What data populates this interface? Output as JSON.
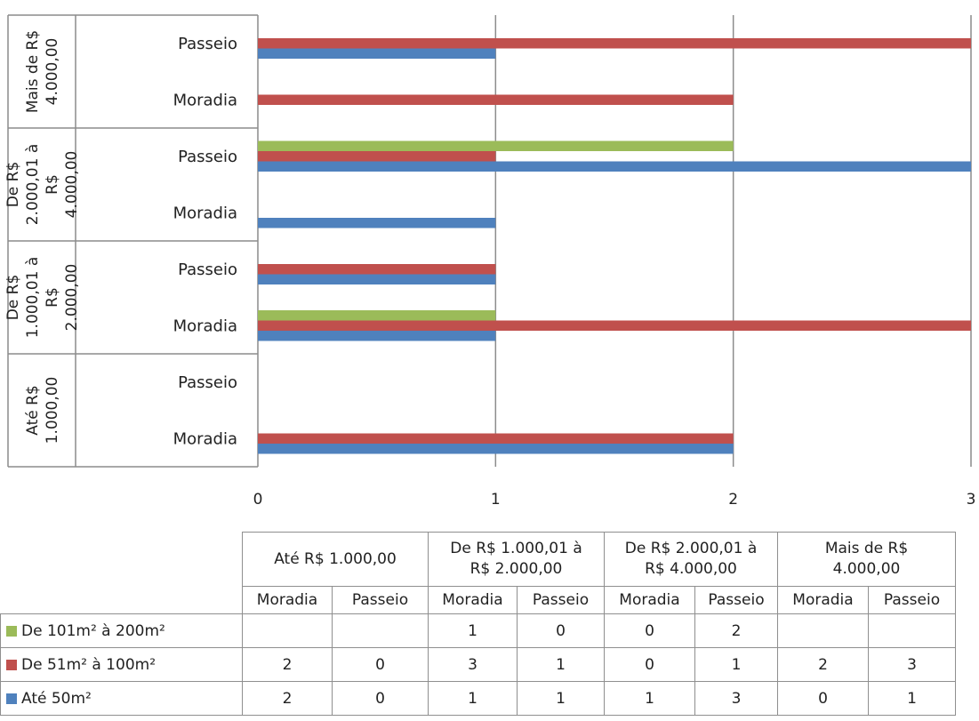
{
  "chart_data": {
    "type": "bar",
    "orientation": "horizontal",
    "groups": [
      "Até R$ 1.000,00",
      "De R$ 1.000,01 à R$ 2.000,00",
      "De R$ 2.000,01 à R$ 4.000,00",
      "Mais de R$ 4.000,00"
    ],
    "group_axis_labels": [
      [
        "Até R$",
        "1.000,00"
      ],
      [
        "De R$",
        "1.000,01 à",
        "R$",
        "2.000,00"
      ],
      [
        "De R$",
        "2.000,01 à",
        "R$",
        "4.000,00"
      ],
      [
        "Mais de R$",
        "4.000,00"
      ]
    ],
    "subcategories": [
      "Moradia",
      "Passeio"
    ],
    "x_ticks": [
      "0",
      "1",
      "2",
      "3"
    ],
    "xlim": [
      0,
      3
    ],
    "grid": true,
    "legend": "data-table",
    "series": [
      {
        "name": "De 101m² à 200m²",
        "color": "#9bbb59",
        "values": [
          null,
          null,
          1,
          0,
          0,
          2,
          null,
          null
        ],
        "labels": [
          "",
          "",
          "1",
          "0",
          "0",
          "2",
          "",
          ""
        ]
      },
      {
        "name": "De 51m² à 100m²",
        "color": "#c0504d",
        "values": [
          2,
          0,
          3,
          1,
          0,
          1,
          2,
          3
        ],
        "labels": [
          "2",
          "0",
          "3",
          "1",
          "0",
          "1",
          "2",
          "3"
        ]
      },
      {
        "name": "Até 50m²",
        "color": "#4f81bd",
        "values": [
          2,
          0,
          1,
          1,
          1,
          3,
          0,
          1
        ],
        "labels": [
          "2",
          "0",
          "1",
          "1",
          "1",
          "3",
          "0",
          "1"
        ]
      }
    ]
  },
  "table": {
    "group_headers": [
      [
        "Até R$ 1.000,00"
      ],
      [
        "De R$ 1.000,01 à",
        "R$ 2.000,00"
      ],
      [
        "De R$ 2.000,01 à",
        "R$ 4.000,00"
      ],
      [
        "Mais de R$",
        "4.000,00"
      ]
    ]
  }
}
